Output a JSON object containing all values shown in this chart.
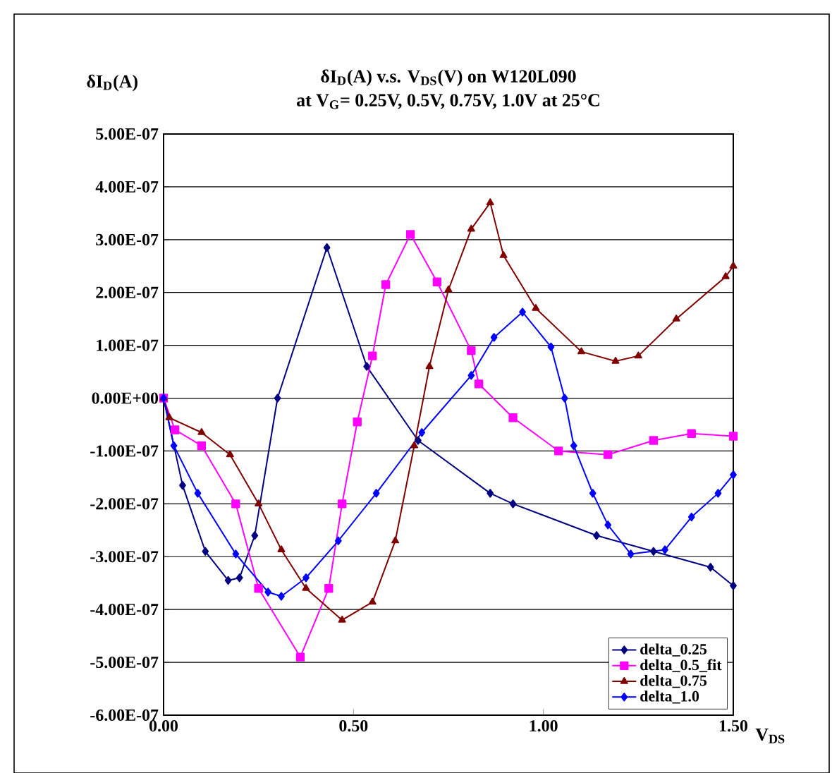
{
  "chart_data": {
    "type": "line",
    "title": "δI$_{D}$(A) v.s. V$_{DS}$(V) on W120L090",
    "subtitle": "at V$_{G}$= 0.25V, 0.5V, 0.75V, 1.0V at 25°C",
    "ylabel": "δI$_{D}$(A)",
    "xlabel": "V$_{DS}$",
    "xlim": [
      0,
      1.5
    ],
    "ylim": [
      -6e-07,
      5e-07
    ],
    "xticks": [
      {
        "value": 0,
        "label": "0.00"
      },
      {
        "value": 0.5,
        "label": "0.50"
      },
      {
        "value": 1.0,
        "label": "1.00"
      },
      {
        "value": 1.5,
        "label": "1.50"
      }
    ],
    "yticks": [
      {
        "value": -6e-07,
        "label": "-6.00E-07"
      },
      {
        "value": -5e-07,
        "label": "-5.00E-07"
      },
      {
        "value": -4e-07,
        "label": "-4.00E-07"
      },
      {
        "value": -3e-07,
        "label": "-3.00E-07"
      },
      {
        "value": -2e-07,
        "label": "-2.00E-07"
      },
      {
        "value": -1e-07,
        "label": "-1.00E-07"
      },
      {
        "value": 0,
        "label": "0.00E+00"
      },
      {
        "value": 1e-07,
        "label": "1.00E-07"
      },
      {
        "value": 2e-07,
        "label": "2.00E-07"
      },
      {
        "value": 3e-07,
        "label": "3.00E-07"
      },
      {
        "value": 4e-07,
        "label": "4.00E-07"
      },
      {
        "value": 5e-07,
        "label": "5.00E-07"
      }
    ],
    "grid": "y",
    "legend": "bottom right",
    "line_style": "solid",
    "series": [
      {
        "name": "delta_0.25",
        "color": "#000080",
        "marker": "diamond",
        "x": [
          0,
          0.05,
          0.11,
          0.17,
          0.2,
          0.24,
          0.3,
          0.43,
          0.535,
          0.67,
          0.86,
          0.92,
          1.14,
          1.29,
          1.44,
          1.5
        ],
        "values": [
          0,
          -1.65e-07,
          -2.9e-07,
          -3.45e-07,
          -3.4e-07,
          -2.6e-07,
          0,
          2.85e-07,
          6e-08,
          -8e-08,
          -1.8e-07,
          -2e-07,
          -2.6e-07,
          -2.9e-07,
          -3.2e-07,
          -3.55e-07
        ]
      },
      {
        "name": "delta_0.5_fit",
        "color": "#ff00ff",
        "marker": "square",
        "x": [
          0,
          0.03,
          0.1,
          0.19,
          0.25,
          0.36,
          0.435,
          0.47,
          0.51,
          0.55,
          0.585,
          0.65,
          0.72,
          0.81,
          0.83,
          0.92,
          1.04,
          1.17,
          1.29,
          1.39,
          1.5
        ],
        "values": [
          0,
          -6e-08,
          -9e-08,
          -2e-07,
          -3.6e-07,
          -4.9e-07,
          -3.6e-07,
          -2e-07,
          -4.5e-08,
          8e-08,
          2.15e-07,
          3.1e-07,
          2.2e-07,
          9e-08,
          2.7e-08,
          -3.7e-08,
          -1e-07,
          -1.07e-07,
          -8e-08,
          -6.7e-08,
          -7.2e-08
        ]
      },
      {
        "name": "delta_0.75",
        "color": "#800000",
        "marker": "triangle",
        "x": [
          0,
          0.015,
          0.1,
          0.175,
          0.25,
          0.31,
          0.375,
          0.47,
          0.55,
          0.61,
          0.66,
          0.7,
          0.75,
          0.81,
          0.86,
          0.895,
          0.98,
          1.1,
          1.19,
          1.25,
          1.35,
          1.48,
          1.5
        ],
        "values": [
          0,
          -3.7e-08,
          -6.5e-08,
          -1.07e-07,
          -2e-07,
          -2.87e-07,
          -3.6e-07,
          -4.2e-07,
          -3.86e-07,
          -2.7e-07,
          -9e-08,
          6e-08,
          2.05e-07,
          3.2e-07,
          3.7e-07,
          2.7e-07,
          1.7e-07,
          8.8e-08,
          7e-08,
          8e-08,
          1.5e-07,
          2.3e-07,
          2.5e-07
        ]
      },
      {
        "name": "delta_1.0",
        "color": "#0000ff",
        "marker": "diamond",
        "x": [
          0,
          0.027,
          0.09,
          0.19,
          0.275,
          0.31,
          0.375,
          0.46,
          0.56,
          0.68,
          0.81,
          0.87,
          0.945,
          1.02,
          1.056,
          1.08,
          1.13,
          1.17,
          1.23,
          1.32,
          1.39,
          1.46,
          1.5
        ],
        "values": [
          0,
          -9e-08,
          -1.8e-07,
          -2.95e-07,
          -3.67e-07,
          -3.75e-07,
          -3.4e-07,
          -2.7e-07,
          -1.8e-07,
          -6.5e-08,
          4.3e-08,
          1.15e-07,
          1.63e-07,
          9.7e-08,
          0,
          -9e-08,
          -1.8e-07,
          -2.4e-07,
          -2.95e-07,
          -2.87e-07,
          -2.25e-07,
          -1.8e-07,
          -1.45e-07
        ]
      }
    ]
  }
}
